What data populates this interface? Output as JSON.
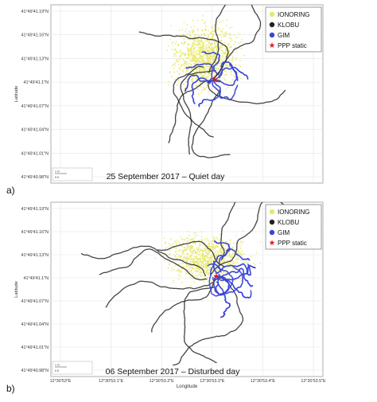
{
  "chart_data": [
    {
      "type": "scatter",
      "panel_label": "a)",
      "annotation": "25 September 2017 – Quiet day",
      "ylabel": "Latitude",
      "xlabel": "",
      "y_ticks": [
        "41°49'41.19\"N",
        "41°49'41.16\"N",
        "41°49'41.13\"N",
        "41°49'41.1\"N",
        "41°49'41.07\"N",
        "41°49'41.04\"N",
        "41°49'41.01\"N",
        "41°49'40.98\"N"
      ],
      "x_ticks": [],
      "grid": true,
      "legend_position": "top-right",
      "scalebar": {
        "top": "1 m",
        "bottom": "5 ft"
      },
      "series": [
        {
          "name": "IONORING",
          "marker": "dot",
          "color": "#e8e86a"
        },
        {
          "name": "KLOBU",
          "marker": "dot",
          "color": "#222222"
        },
        {
          "name": "GIM",
          "marker": "dot",
          "color": "#3a44d8"
        },
        {
          "name": "PPP static",
          "marker": "star",
          "color": "#e8122a"
        }
      ]
    },
    {
      "type": "scatter",
      "panel_label": "b)",
      "annotation": "06 September 2017 – Disturbed day",
      "ylabel": "Latitude",
      "xlabel": "Longitude",
      "y_ticks": [
        "41°49'41.19\"N",
        "41°49'41.16\"N",
        "41°49'41.13\"N",
        "41°49'41.1\"N",
        "41°49'41.07\"N",
        "41°49'41.04\"N",
        "41°49'41.01\"N",
        "41°49'40.98\"N"
      ],
      "x_ticks": [
        "12°30'53\"E",
        "12°30'53.1\"E",
        "12°30'53.2\"E",
        "12°30'53.3\"E",
        "12°30'53.4\"E",
        "12°30'53.5\"E"
      ],
      "grid": true,
      "legend_position": "top-right",
      "scalebar": {
        "top": "1 m",
        "bottom": "5 ft"
      },
      "series": [
        {
          "name": "IONORING",
          "marker": "dot",
          "color": "#e8e86a"
        },
        {
          "name": "KLOBU",
          "marker": "dot",
          "color": "#222222"
        },
        {
          "name": "GIM",
          "marker": "dot",
          "color": "#3a44d8"
        },
        {
          "name": "PPP static",
          "marker": "star",
          "color": "#e8122a"
        }
      ]
    }
  ]
}
